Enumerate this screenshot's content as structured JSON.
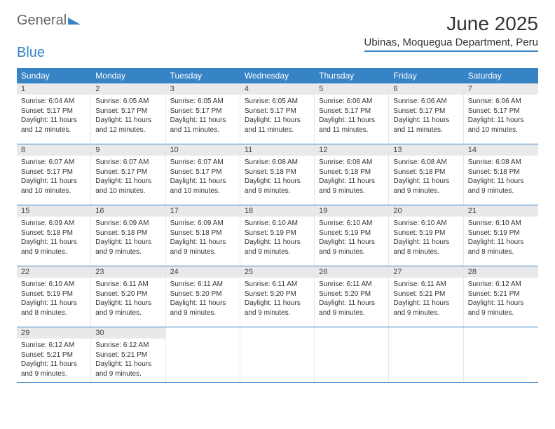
{
  "logo": {
    "text_general": "General",
    "text_blue": "Blue"
  },
  "title": "June 2025",
  "location": "Ubinas, Moquegua Department, Peru",
  "colors": {
    "brand": "#3683c6",
    "header_bg_2": "#e9e9e9",
    "text": "#333333",
    "bg": "#ffffff"
  },
  "weekdays": [
    "Sunday",
    "Monday",
    "Tuesday",
    "Wednesday",
    "Thursday",
    "Friday",
    "Saturday"
  ],
  "weeks": [
    [
      {
        "day": "1",
        "sunrise": "Sunrise: 6:04 AM",
        "sunset": "Sunset: 5:17 PM",
        "daylight1": "Daylight: 11 hours",
        "daylight2": "and 12 minutes."
      },
      {
        "day": "2",
        "sunrise": "Sunrise: 6:05 AM",
        "sunset": "Sunset: 5:17 PM",
        "daylight1": "Daylight: 11 hours",
        "daylight2": "and 12 minutes."
      },
      {
        "day": "3",
        "sunrise": "Sunrise: 6:05 AM",
        "sunset": "Sunset: 5:17 PM",
        "daylight1": "Daylight: 11 hours",
        "daylight2": "and 11 minutes."
      },
      {
        "day": "4",
        "sunrise": "Sunrise: 6:05 AM",
        "sunset": "Sunset: 5:17 PM",
        "daylight1": "Daylight: 11 hours",
        "daylight2": "and 11 minutes."
      },
      {
        "day": "5",
        "sunrise": "Sunrise: 6:06 AM",
        "sunset": "Sunset: 5:17 PM",
        "daylight1": "Daylight: 11 hours",
        "daylight2": "and 11 minutes."
      },
      {
        "day": "6",
        "sunrise": "Sunrise: 6:06 AM",
        "sunset": "Sunset: 5:17 PM",
        "daylight1": "Daylight: 11 hours",
        "daylight2": "and 11 minutes."
      },
      {
        "day": "7",
        "sunrise": "Sunrise: 6:06 AM",
        "sunset": "Sunset: 5:17 PM",
        "daylight1": "Daylight: 11 hours",
        "daylight2": "and 10 minutes."
      }
    ],
    [
      {
        "day": "8",
        "sunrise": "Sunrise: 6:07 AM",
        "sunset": "Sunset: 5:17 PM",
        "daylight1": "Daylight: 11 hours",
        "daylight2": "and 10 minutes."
      },
      {
        "day": "9",
        "sunrise": "Sunrise: 6:07 AM",
        "sunset": "Sunset: 5:17 PM",
        "daylight1": "Daylight: 11 hours",
        "daylight2": "and 10 minutes."
      },
      {
        "day": "10",
        "sunrise": "Sunrise: 6:07 AM",
        "sunset": "Sunset: 5:17 PM",
        "daylight1": "Daylight: 11 hours",
        "daylight2": "and 10 minutes."
      },
      {
        "day": "11",
        "sunrise": "Sunrise: 6:08 AM",
        "sunset": "Sunset: 5:18 PM",
        "daylight1": "Daylight: 11 hours",
        "daylight2": "and 9 minutes."
      },
      {
        "day": "12",
        "sunrise": "Sunrise: 6:08 AM",
        "sunset": "Sunset: 5:18 PM",
        "daylight1": "Daylight: 11 hours",
        "daylight2": "and 9 minutes."
      },
      {
        "day": "13",
        "sunrise": "Sunrise: 6:08 AM",
        "sunset": "Sunset: 5:18 PM",
        "daylight1": "Daylight: 11 hours",
        "daylight2": "and 9 minutes."
      },
      {
        "day": "14",
        "sunrise": "Sunrise: 6:08 AM",
        "sunset": "Sunset: 5:18 PM",
        "daylight1": "Daylight: 11 hours",
        "daylight2": "and 9 minutes."
      }
    ],
    [
      {
        "day": "15",
        "sunrise": "Sunrise: 6:09 AM",
        "sunset": "Sunset: 5:18 PM",
        "daylight1": "Daylight: 11 hours",
        "daylight2": "and 9 minutes."
      },
      {
        "day": "16",
        "sunrise": "Sunrise: 6:09 AM",
        "sunset": "Sunset: 5:18 PM",
        "daylight1": "Daylight: 11 hours",
        "daylight2": "and 9 minutes."
      },
      {
        "day": "17",
        "sunrise": "Sunrise: 6:09 AM",
        "sunset": "Sunset: 5:18 PM",
        "daylight1": "Daylight: 11 hours",
        "daylight2": "and 9 minutes."
      },
      {
        "day": "18",
        "sunrise": "Sunrise: 6:10 AM",
        "sunset": "Sunset: 5:19 PM",
        "daylight1": "Daylight: 11 hours",
        "daylight2": "and 9 minutes."
      },
      {
        "day": "19",
        "sunrise": "Sunrise: 6:10 AM",
        "sunset": "Sunset: 5:19 PM",
        "daylight1": "Daylight: 11 hours",
        "daylight2": "and 9 minutes."
      },
      {
        "day": "20",
        "sunrise": "Sunrise: 6:10 AM",
        "sunset": "Sunset: 5:19 PM",
        "daylight1": "Daylight: 11 hours",
        "daylight2": "and 8 minutes."
      },
      {
        "day": "21",
        "sunrise": "Sunrise: 6:10 AM",
        "sunset": "Sunset: 5:19 PM",
        "daylight1": "Daylight: 11 hours",
        "daylight2": "and 8 minutes."
      }
    ],
    [
      {
        "day": "22",
        "sunrise": "Sunrise: 6:10 AM",
        "sunset": "Sunset: 5:19 PM",
        "daylight1": "Daylight: 11 hours",
        "daylight2": "and 8 minutes."
      },
      {
        "day": "23",
        "sunrise": "Sunrise: 6:11 AM",
        "sunset": "Sunset: 5:20 PM",
        "daylight1": "Daylight: 11 hours",
        "daylight2": "and 9 minutes."
      },
      {
        "day": "24",
        "sunrise": "Sunrise: 6:11 AM",
        "sunset": "Sunset: 5:20 PM",
        "daylight1": "Daylight: 11 hours",
        "daylight2": "and 9 minutes."
      },
      {
        "day": "25",
        "sunrise": "Sunrise: 6:11 AM",
        "sunset": "Sunset: 5:20 PM",
        "daylight1": "Daylight: 11 hours",
        "daylight2": "and 9 minutes."
      },
      {
        "day": "26",
        "sunrise": "Sunrise: 6:11 AM",
        "sunset": "Sunset: 5:20 PM",
        "daylight1": "Daylight: 11 hours",
        "daylight2": "and 9 minutes."
      },
      {
        "day": "27",
        "sunrise": "Sunrise: 6:11 AM",
        "sunset": "Sunset: 5:21 PM",
        "daylight1": "Daylight: 11 hours",
        "daylight2": "and 9 minutes."
      },
      {
        "day": "28",
        "sunrise": "Sunrise: 6:12 AM",
        "sunset": "Sunset: 5:21 PM",
        "daylight1": "Daylight: 11 hours",
        "daylight2": "and 9 minutes."
      }
    ],
    [
      {
        "day": "29",
        "sunrise": "Sunrise: 6:12 AM",
        "sunset": "Sunset: 5:21 PM",
        "daylight1": "Daylight: 11 hours",
        "daylight2": "and 9 minutes."
      },
      {
        "day": "30",
        "sunrise": "Sunrise: 6:12 AM",
        "sunset": "Sunset: 5:21 PM",
        "daylight1": "Daylight: 11 hours",
        "daylight2": "and 9 minutes."
      },
      {
        "empty": true
      },
      {
        "empty": true
      },
      {
        "empty": true
      },
      {
        "empty": true
      },
      {
        "empty": true
      }
    ]
  ]
}
